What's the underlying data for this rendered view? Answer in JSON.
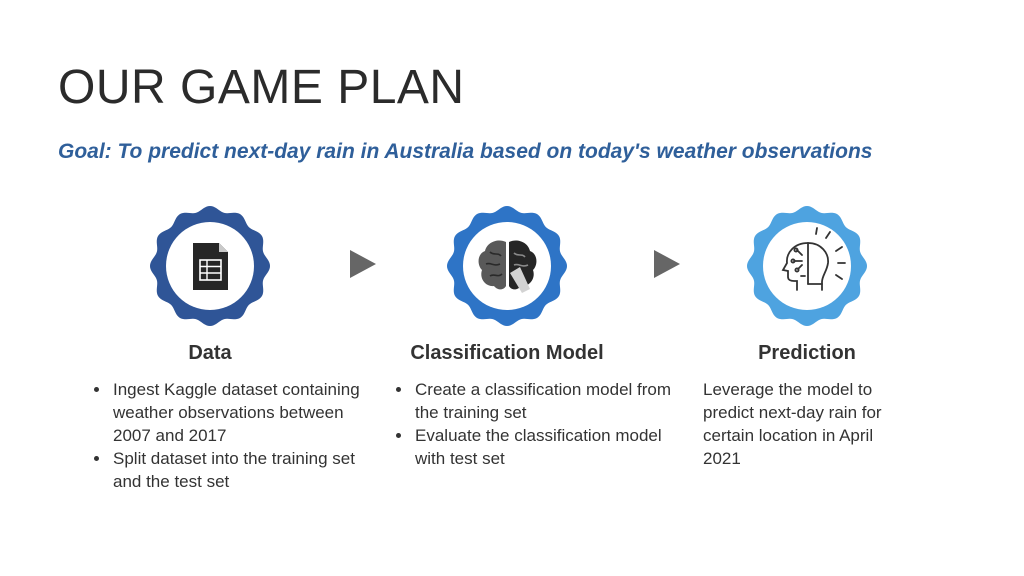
{
  "slide": {
    "title": "OUR GAME PLAN",
    "goal": "Goal: To predict next-day rain in Australia based on today's weather observations"
  },
  "steps": [
    {
      "icon": "spreadsheet-icon",
      "badge_color": "#2f5597",
      "title": "Data",
      "bullets": [
        "Ingest Kaggle dataset containing weather observations between 2007 and 2017",
        "Split dataset into the training set and the test set"
      ]
    },
    {
      "icon": "brain-icon",
      "badge_color": "#2e74c6",
      "title": "Classification Model",
      "bullets": [
        "Create a classification model from the training set",
        "Evaluate the classification model with test set"
      ]
    },
    {
      "icon": "ai-head-icon",
      "badge_color": "#4ea3e0",
      "title": "Prediction",
      "text": "Leverage the model to predict next-day rain for certain location in April 2021"
    }
  ],
  "arrow_color": "#666666"
}
